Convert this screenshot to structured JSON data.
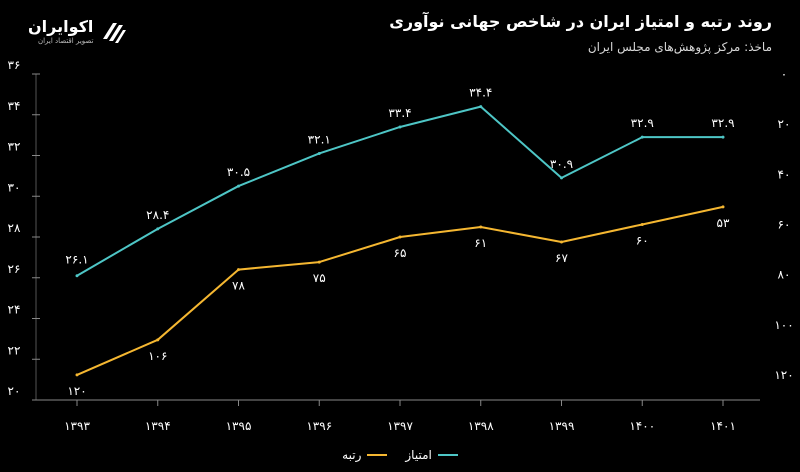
{
  "header": {
    "title": "روند رتبه و امتیاز ایران در شاخص جهانی نوآوری",
    "source": "ماخذ: مرکز پژوهش‌های مجلس ایران"
  },
  "logo": {
    "name": "اکوایران",
    "tagline": "تصویر اقتصاد ایران"
  },
  "colors": {
    "score": "#4ec6c6",
    "rank": "#f5b731",
    "background": "#000000",
    "text": "#ffffff"
  },
  "chart_data": {
    "type": "line",
    "categories": [
      "۱۳۹۳",
      "۱۳۹۴",
      "۱۳۹۵",
      "۱۳۹۶",
      "۱۳۹۷",
      "۱۳۹۸",
      "۱۳۹۹",
      "۱۴۰۰",
      "۱۴۰۱"
    ],
    "series": [
      {
        "name": "امتیاز",
        "axis": "left",
        "values": [
          26.1,
          28.4,
          30.5,
          32.1,
          33.4,
          34.4,
          30.9,
          32.9,
          32.9
        ],
        "labels": [
          "۲۶.۱",
          "۲۸.۴",
          "۳۰.۵",
          "۳۲.۱",
          "۳۳.۴",
          "۳۴.۴",
          "۳۰.۹",
          "۳۲.۹",
          "۳۲.۹"
        ]
      },
      {
        "name": "رتبه",
        "axis": "right",
        "values": [
          120,
          106,
          78,
          75,
          65,
          61,
          67,
          60,
          53
        ],
        "labels": [
          "۱۲۰",
          "۱۰۶",
          "۷۸",
          "۷۵",
          "۶۵",
          "۶۱",
          "۶۷",
          "۶۰",
          "۵۳"
        ]
      }
    ],
    "left_axis": {
      "range": [
        20,
        36
      ],
      "ticks": [
        20,
        22,
        24,
        26,
        28,
        30,
        32,
        34,
        36
      ],
      "tick_labels": [
        "۲۰",
        "۲۲",
        "۲۴",
        "۲۶",
        "۲۸",
        "۳۰",
        "۳۲",
        "۳۴",
        "۳۶"
      ]
    },
    "right_axis": {
      "range": [
        0,
        130
      ],
      "reversed": true,
      "ticks": [
        0,
        20,
        40,
        60,
        80,
        100,
        120
      ],
      "tick_labels": [
        "۰",
        "۲۰",
        "۴۰",
        "۶۰",
        "۸۰",
        "۱۰۰",
        "۱۲۰"
      ]
    },
    "grid": false,
    "legend_position": "bottom"
  }
}
